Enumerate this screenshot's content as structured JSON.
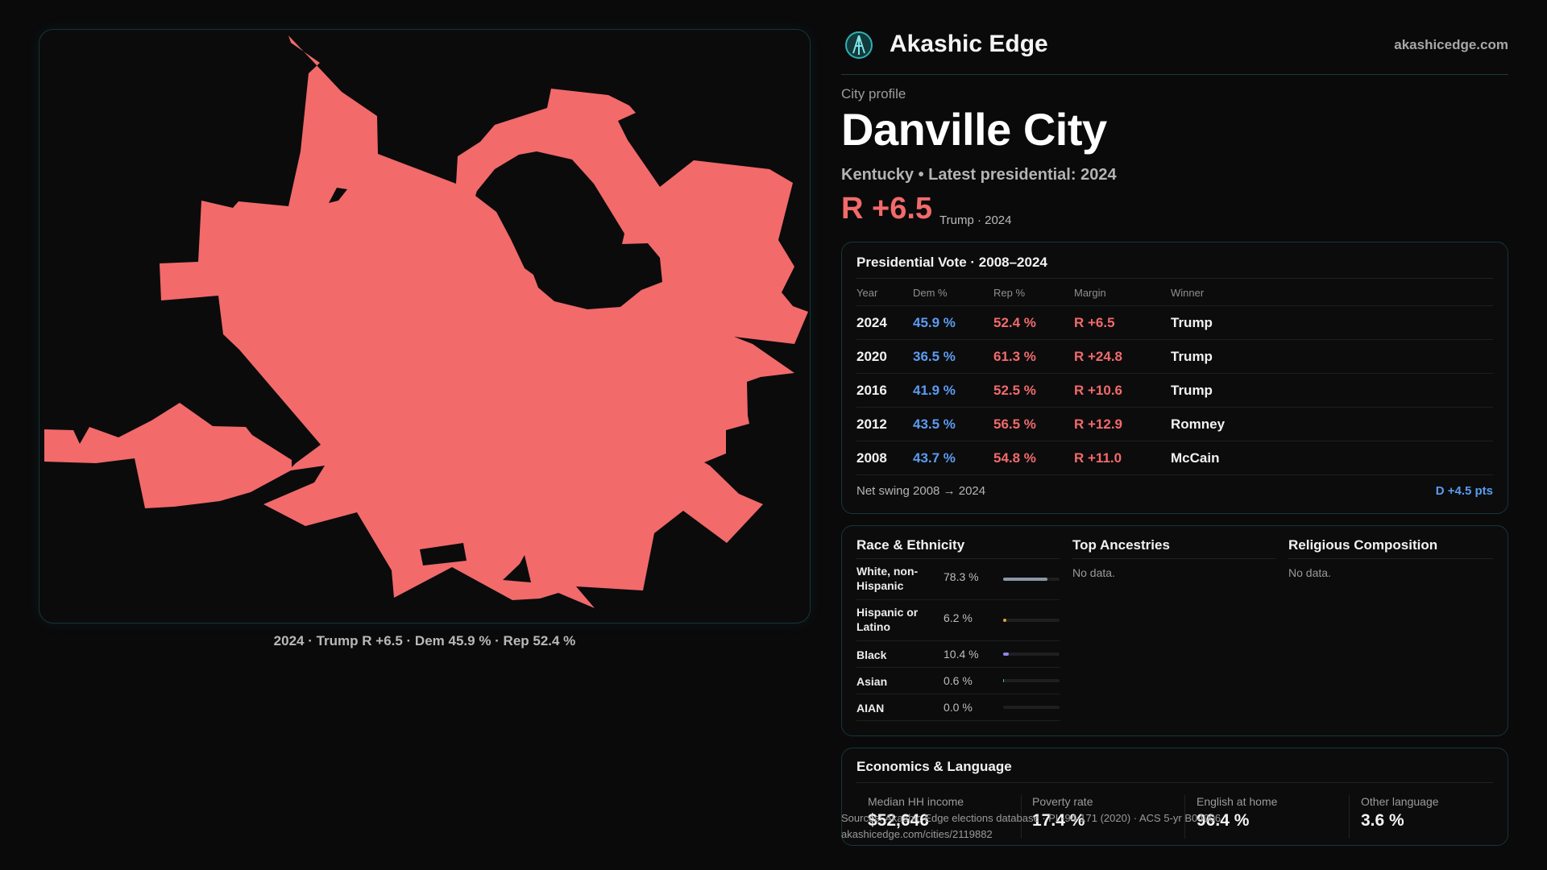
{
  "brand": {
    "name": "Akashic Edge",
    "url": "akashicedge.com"
  },
  "profile": {
    "eyebrow": "City profile",
    "title": "Danville City",
    "subtitle": "Kentucky • Latest presidential: 2024",
    "margin_big": "R +6.5",
    "margin_note": "Trump · 2024"
  },
  "map": {
    "fill_color": "#f26a6a",
    "caption": "2024 · Trump R +6.5 · Dem 45.9 % · Rep 52.4 %"
  },
  "vote_table": {
    "title": "Presidential Vote · 2008–2024",
    "headers": [
      "Year",
      "Dem %",
      "Rep %",
      "Margin",
      "Winner"
    ],
    "rows": [
      [
        "2024",
        "45.9 %",
        "52.4 %",
        "R +6.5",
        "Trump"
      ],
      [
        "2020",
        "36.5 %",
        "61.3 %",
        "R +24.8",
        "Trump"
      ],
      [
        "2016",
        "41.9 %",
        "52.5 %",
        "R +10.6",
        "Trump"
      ],
      [
        "2012",
        "43.5 %",
        "56.5 %",
        "R +12.9",
        "Romney"
      ],
      [
        "2008",
        "43.7 %",
        "54.8 %",
        "R +11.0",
        "McCain"
      ]
    ],
    "swing_label": "Net swing 2008 → 2024",
    "swing_value": "D +4.5 pts"
  },
  "race": {
    "title": "Race & Ethnicity",
    "rows": [
      {
        "label": "White, non-Hispanic",
        "pct": "78.3 %",
        "value": 78.3,
        "color": "#8c96a6"
      },
      {
        "label": "Hispanic or Latino",
        "pct": "6.2 %",
        "value": 6.2,
        "color": "#e0a13a"
      },
      {
        "label": "Black",
        "pct": "10.4 %",
        "value": 10.4,
        "color": "#8d86e6"
      },
      {
        "label": "Asian",
        "pct": "0.6 %",
        "value": 0.6,
        "color": "#4fb0b0"
      },
      {
        "label": "AIAN",
        "pct": "0.0 %",
        "value": 0.0,
        "color": "#6aa0d8"
      }
    ]
  },
  "ancestries": {
    "title": "Top Ancestries",
    "empty": "No data."
  },
  "religion": {
    "title": "Religious Composition",
    "empty": "No data."
  },
  "economics": {
    "title": "Economics & Language",
    "items": [
      {
        "label": "Median HH income",
        "value": "$52,646"
      },
      {
        "label": "Poverty rate",
        "value": "17.4 %"
      },
      {
        "label": "English at home",
        "value": "96.4 %"
      },
      {
        "label": "Other language",
        "value": "3.6 %"
      }
    ]
  },
  "source": {
    "line1": "Sources: Akashic Edge elections database · PL-94-171 (2020) · ACS 5-yr B04006",
    "line2": "akashicedge.com/cities/2119882"
  }
}
